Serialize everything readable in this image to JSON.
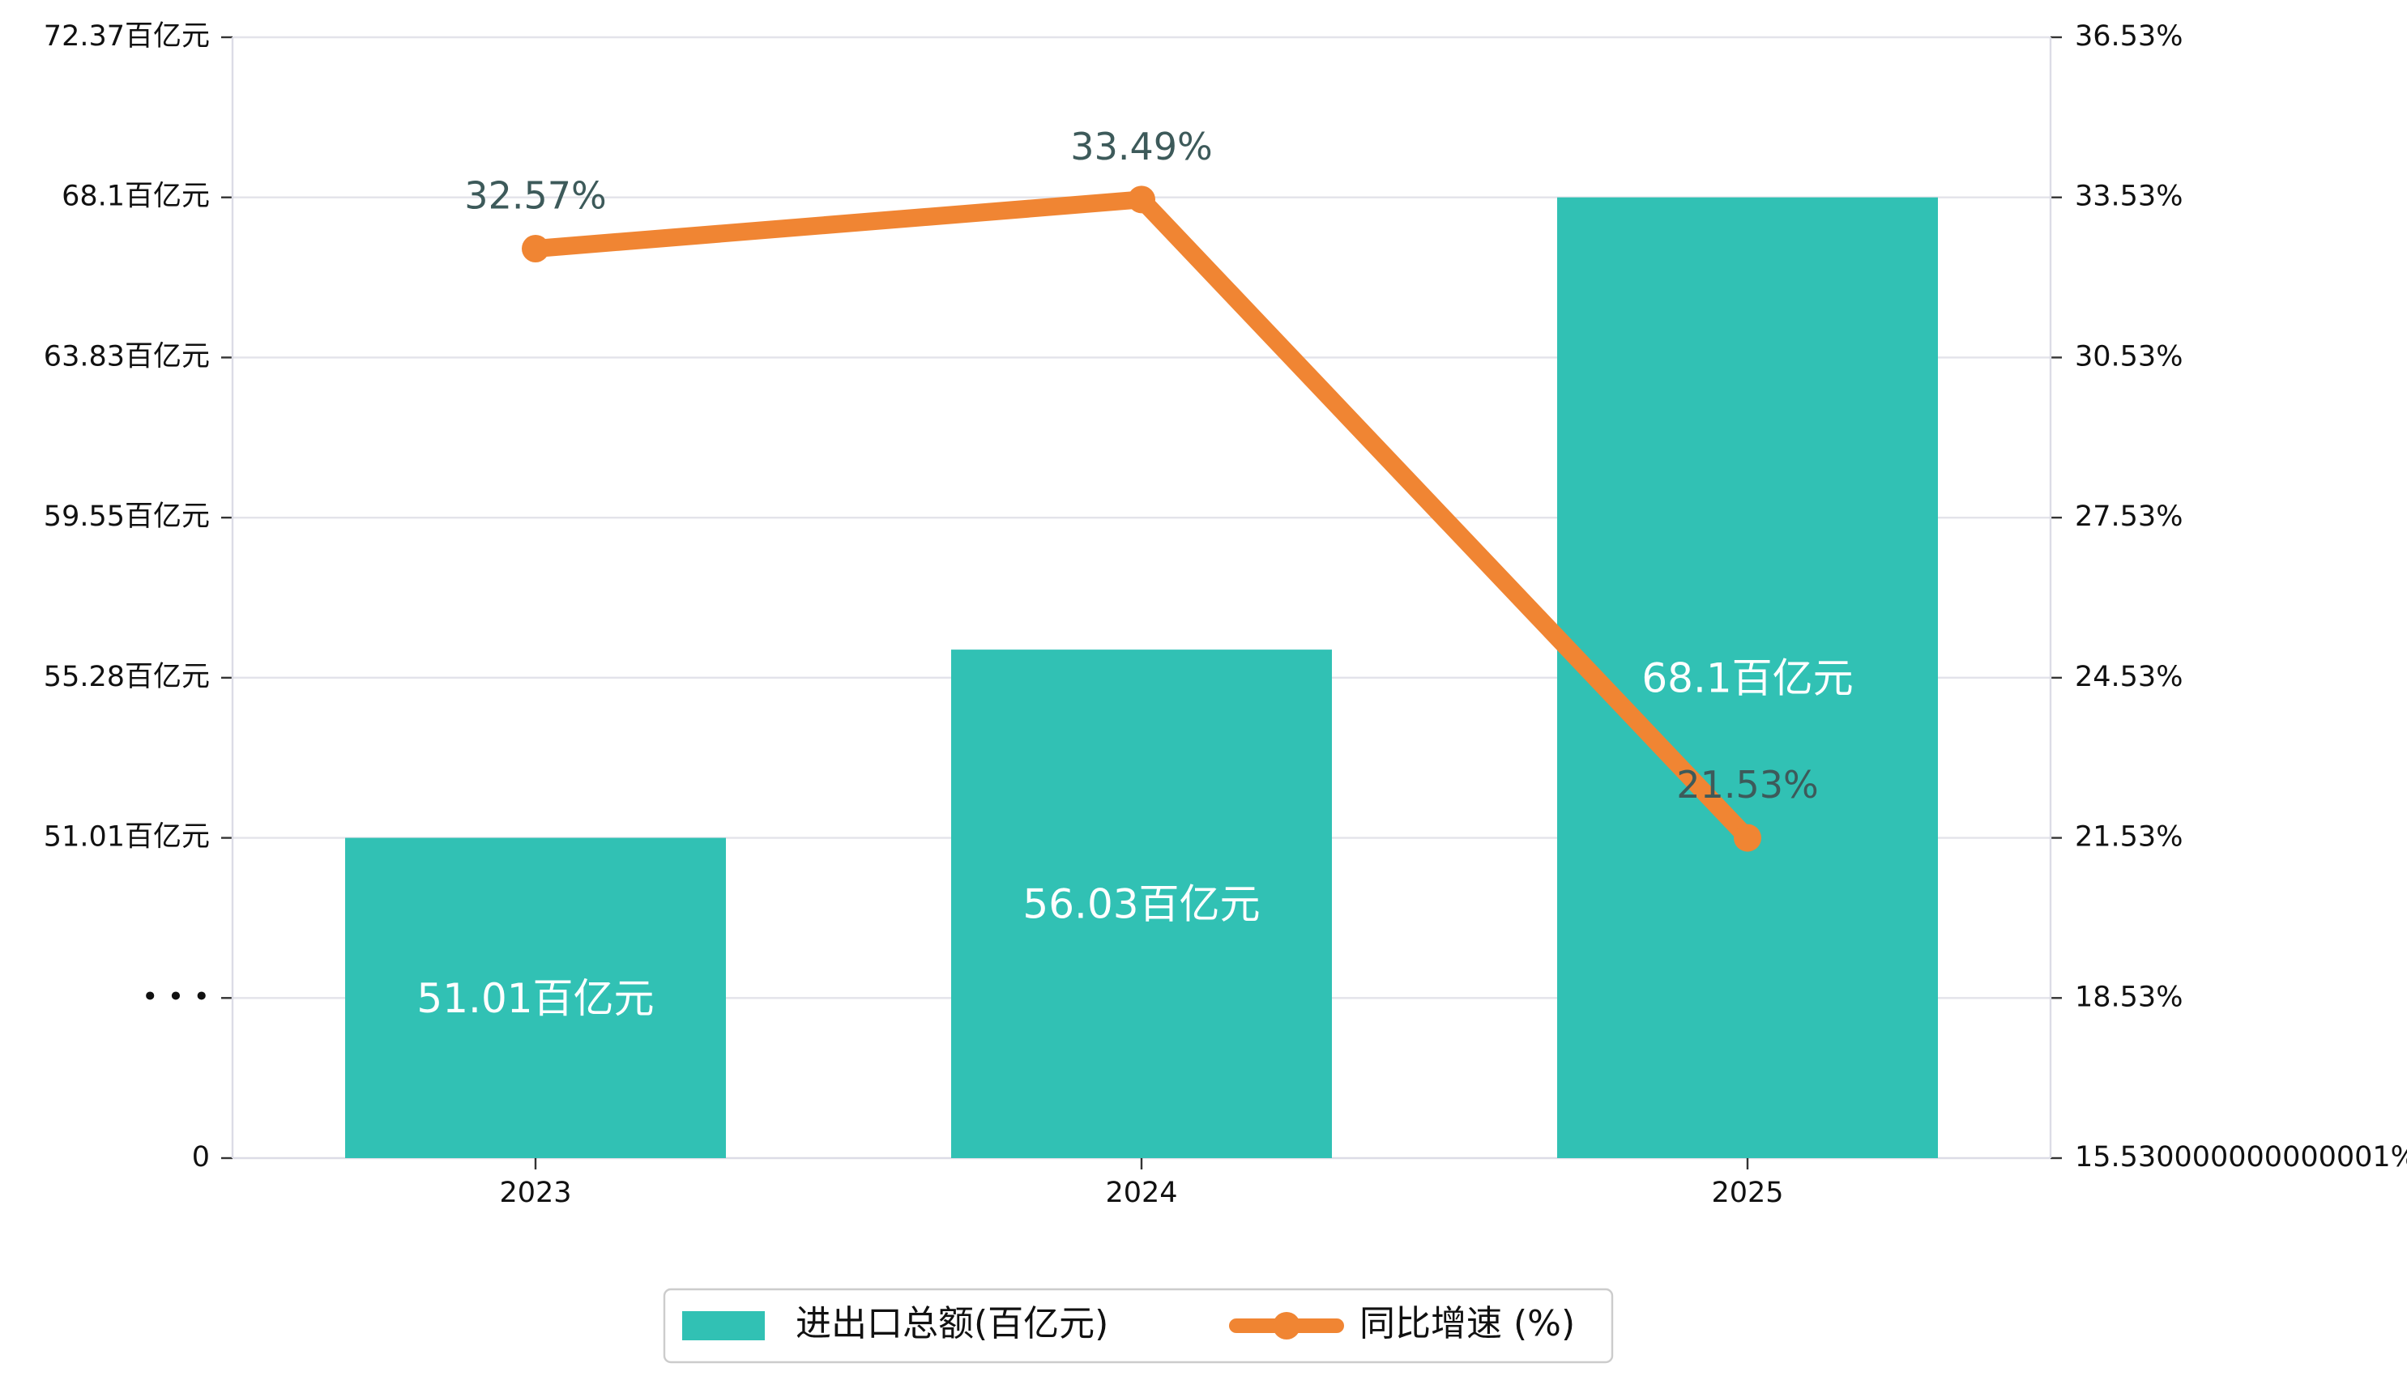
{
  "colors": {
    "bar": "#31c1b4",
    "line": "#f08533"
  },
  "chart_data": {
    "type": "bar",
    "categories": [
      "2023",
      "2024",
      "2025"
    ],
    "series": [
      {
        "name": "进出口总额(百亿元)",
        "type": "bar",
        "axis": "left",
        "values": [
          51.01,
          56.03,
          68.1
        ],
        "labels": [
          "51.01百亿元",
          "56.03百亿元",
          "68.1百亿元"
        ]
      },
      {
        "name": "同比增速 (%)",
        "type": "line",
        "axis": "right",
        "values": [
          32.57,
          33.49,
          21.53
        ],
        "labels": [
          "32.57%",
          "33.49%",
          "21.53%"
        ]
      }
    ],
    "left_axis": {
      "ticks": [
        {
          "pos": 0,
          "label": "0"
        },
        {
          "pos": 1,
          "label": "• • •"
        },
        {
          "pos": 2,
          "value": 51.01,
          "label": "51.01百亿元"
        },
        {
          "pos": 3,
          "value": 55.28,
          "label": "55.28百亿元"
        },
        {
          "pos": 4,
          "value": 59.55,
          "label": "59.55百亿元"
        },
        {
          "pos": 5,
          "value": 63.83,
          "label": "63.83百亿元"
        },
        {
          "pos": 6,
          "value": 68.1,
          "label": "68.1百亿元"
        },
        {
          "pos": 7,
          "value": 72.37,
          "label": "72.37百亿元"
        }
      ]
    },
    "right_axis": {
      "ylim": [
        15.53,
        36.53
      ],
      "ticks": [
        {
          "value": 15.53,
          "label": "15.530000000000001%"
        },
        {
          "value": 18.53,
          "label": "18.53%"
        },
        {
          "value": 21.53,
          "label": "21.53%"
        },
        {
          "value": 24.53,
          "label": "24.53%"
        },
        {
          "value": 27.53,
          "label": "27.53%"
        },
        {
          "value": 30.53,
          "label": "30.53%"
        },
        {
          "value": 33.53,
          "label": "33.53%"
        },
        {
          "value": 36.53,
          "label": "36.53%"
        }
      ]
    },
    "legend": {
      "placement": "bottom-center",
      "entries": [
        "进出口总额(百亿元)",
        "同比增速 (%)"
      ]
    },
    "grid": true,
    "title": "",
    "xlabel": "",
    "ylabel": ""
  }
}
